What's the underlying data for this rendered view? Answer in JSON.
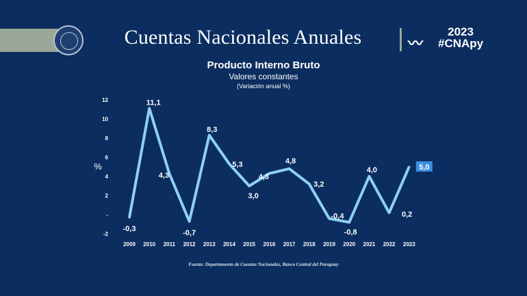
{
  "header": {
    "title": "Cuentas Nacionales Anuales",
    "year": "2023",
    "hashtag": "#CNApy"
  },
  "chart_data": {
    "type": "line",
    "title": "Producto Interno Bruto",
    "subtitle": "Valores constantes",
    "subtitle2": "(Variación anual %)",
    "ylabel": "%",
    "xlabel": "",
    "ylim": [
      -2,
      12
    ],
    "yticks": [
      "-2",
      "-",
      "2",
      "4",
      "6",
      "8",
      "10",
      "12"
    ],
    "categories": [
      "2009",
      "2010",
      "2011",
      "2012",
      "2013",
      "2014",
      "2015",
      "2016",
      "2017",
      "2018",
      "2019",
      "2020",
      "2021",
      "2022",
      "2023"
    ],
    "values": [
      -0.3,
      11.1,
      4.3,
      -0.7,
      8.3,
      5.3,
      3.0,
      4.3,
      4.8,
      3.2,
      -0.4,
      -0.8,
      4.0,
      0.2,
      5.0
    ],
    "labels": [
      "-0,3",
      "11,1",
      "4,3",
      "-0,7",
      "8,3",
      "5,3",
      "3,0",
      "4,3",
      "4,8",
      "3,2",
      "-0,4",
      "-0,8",
      "4,0",
      "0,2",
      "5,0"
    ],
    "line_color": "#8fd0f5",
    "highlight_color": "#3b8fe0"
  },
  "source": "Fuente: Departamento de Cuentas Nacionales, Banco Central del Paraguay"
}
